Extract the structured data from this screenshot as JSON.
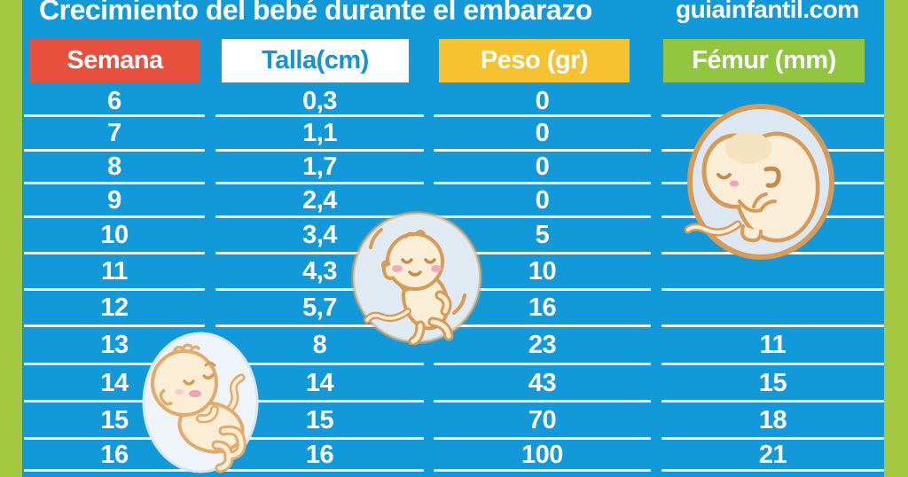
{
  "page": {
    "title": "Crecimiento del bebé durante el embarazo",
    "site": "guiainfantil.com"
  },
  "colors": {
    "frame_green": "#a4c841",
    "panel_blue": "#1299d9",
    "header_semana_bg": "#e7503d",
    "header_talla_bg": "#ffffff",
    "header_talla_text": "#1593d3",
    "header_peso_bg": "#f6c22d",
    "header_femur_bg": "#91c53e",
    "row_text": "#ffffff",
    "separator": "#ffffff"
  },
  "table": {
    "columns": [
      {
        "key": "semana",
        "label": "Semana"
      },
      {
        "key": "talla",
        "label": "Talla(cm)"
      },
      {
        "key": "peso",
        "label": "Peso (gr)"
      },
      {
        "key": "femur",
        "label": "Fémur (mm)"
      }
    ],
    "rows": [
      {
        "semana": "6",
        "talla": "0,3",
        "peso": "0",
        "femur": ""
      },
      {
        "semana": "7",
        "talla": "1,1",
        "peso": "0",
        "femur": ""
      },
      {
        "semana": "8",
        "talla": "1,7",
        "peso": "0",
        "femur": ""
      },
      {
        "semana": "9",
        "talla": "2,4",
        "peso": "0",
        "femur": ""
      },
      {
        "semana": "10",
        "talla": "3,4",
        "peso": "5",
        "femur": ""
      },
      {
        "semana": "11",
        "talla": "4,3",
        "peso": "10",
        "femur": ""
      },
      {
        "semana": "12",
        "talla": "5,7",
        "peso": "16",
        "femur": ""
      },
      {
        "semana": "13",
        "talla": "8",
        "peso": "23",
        "femur": "11"
      },
      {
        "semana": "14",
        "talla": "14",
        "peso": "43",
        "femur": "15"
      },
      {
        "semana": "15",
        "talla": "15",
        "peso": "70",
        "femur": "18"
      },
      {
        "semana": "16",
        "talla": "16",
        "peso": "100",
        "femur": "21"
      }
    ]
  },
  "illustrations": [
    {
      "name": "fetus-curled-illustration",
      "description": "curled fetus in bubble, femur column weeks 7-10"
    },
    {
      "name": "fetus-waving-illustration",
      "description": "waving fetus in bubble, talla/peso columns weeks 10-12"
    },
    {
      "name": "baby-sleeping-illustration",
      "description": "sleeping curled baby in bubble, semana column weeks 13-16"
    }
  ],
  "chart_data": {
    "type": "table",
    "title": "Crecimiento del bebé durante el embarazo",
    "source": "guiainfantil.com",
    "columns": [
      "Semana",
      "Talla(cm)",
      "Peso (gr)",
      "Fémur (mm)"
    ],
    "rows": [
      [
        6,
        0.3,
        0,
        null
      ],
      [
        7,
        1.1,
        0,
        null
      ],
      [
        8,
        1.7,
        0,
        null
      ],
      [
        9,
        2.4,
        0,
        null
      ],
      [
        10,
        3.4,
        5,
        null
      ],
      [
        11,
        4.3,
        10,
        null
      ],
      [
        12,
        5.7,
        16,
        null
      ],
      [
        13,
        8,
        23,
        11
      ],
      [
        14,
        14,
        43,
        15
      ],
      [
        15,
        15,
        70,
        18
      ],
      [
        16,
        16,
        100,
        21
      ]
    ]
  }
}
